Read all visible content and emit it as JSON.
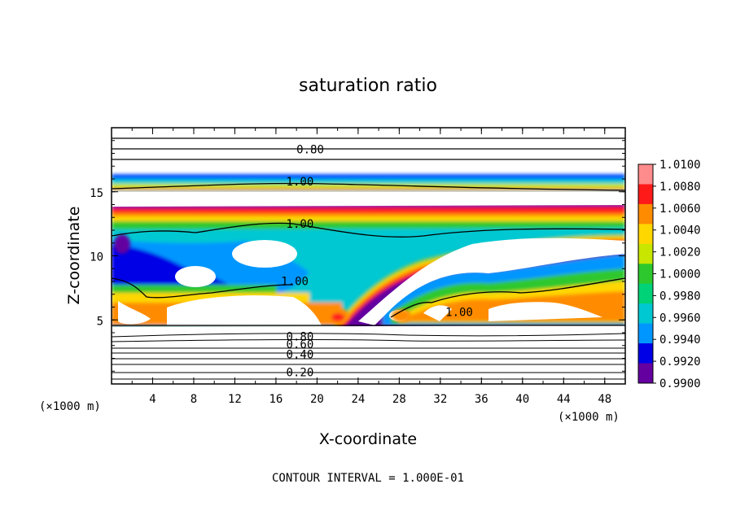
{
  "chart_data": {
    "type": "heatmap",
    "title": "saturation ratio",
    "xlabel": "X-coordinate",
    "ylabel": "Z-coordinate",
    "x_unit": "(×1000 m)",
    "x_unit_right": "(×1000 m)",
    "xlim": [
      0,
      50
    ],
    "ylim": [
      0,
      20
    ],
    "x_ticks": [
      4,
      8,
      12,
      16,
      20,
      24,
      28,
      32,
      36,
      40,
      44,
      48
    ],
    "y_ticks": [
      5,
      10,
      15
    ],
    "footer": "CONTOUR INTERVAL = 1.000E-01",
    "contour_labels": [
      {
        "text": "0.80",
        "x": 18.0,
        "z": 18.0
      },
      {
        "text": "1.00",
        "x": 17.0,
        "z": 15.5
      },
      {
        "text": "1.00",
        "x": 17.0,
        "z": 12.2
      },
      {
        "text": "1.00",
        "x": 16.5,
        "z": 7.7
      },
      {
        "text": "1.00",
        "x": 32.5,
        "z": 5.3
      },
      {
        "text": "0.80",
        "x": 17.0,
        "z": 3.4
      },
      {
        "text": "0.60",
        "x": 17.0,
        "z": 2.8
      },
      {
        "text": "0.40",
        "x": 17.0,
        "z": 2.0
      },
      {
        "text": "0.20",
        "x": 17.0,
        "z": 0.6
      }
    ],
    "colorbar": {
      "labels": [
        "1.0100",
        "1.0080",
        "1.0060",
        "1.0040",
        "1.0020",
        "1.0000",
        "0.9980",
        "0.9960",
        "0.9940",
        "0.9920",
        "0.9900"
      ],
      "colors": [
        "#ff8c8c",
        "#ff1a1a",
        "#ff8c00",
        "#ffd700",
        "#c8e600",
        "#2dc82d",
        "#00d278",
        "#00c8d2",
        "#0096ff",
        "#0000e6",
        "#6400a0"
      ]
    }
  }
}
